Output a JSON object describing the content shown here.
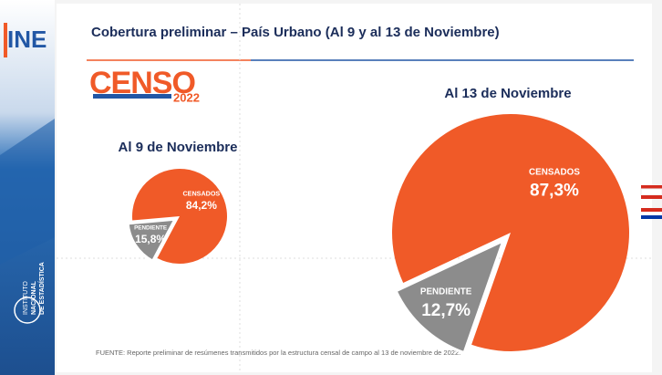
{
  "logo": "INE",
  "institute": [
    "INSTITUTO",
    "NACIONAL",
    "DE ESTADÍSTICA"
  ],
  "title": "Cobertura preliminar – País Urbano (Al 9 y al 13 de Noviembre)",
  "brand": {
    "censo": "CENSO",
    "year": "2022"
  },
  "source": "FUENTE: Reporte preliminar de resúmenes transmitidos por la estructura censal de campo al 13 de noviembre de 2022.",
  "chart_data": [
    {
      "type": "pie",
      "title": "Al 9 de Noviembre",
      "categories": [
        "CENSADOS",
        "PENDIENTE"
      ],
      "values": [
        84.2,
        15.8
      ],
      "value_labels": [
        "84,2%",
        "15,8%"
      ],
      "colors": [
        "#f05a28",
        "#8c8c8c"
      ]
    },
    {
      "type": "pie",
      "title": "Al 13 de Noviembre",
      "categories": [
        "CENSADOS",
        "PENDIENTE"
      ],
      "values": [
        87.3,
        12.7
      ],
      "value_labels": [
        "87,3%",
        "12,7%"
      ],
      "colors": [
        "#f05a28",
        "#8c8c8c"
      ]
    }
  ]
}
